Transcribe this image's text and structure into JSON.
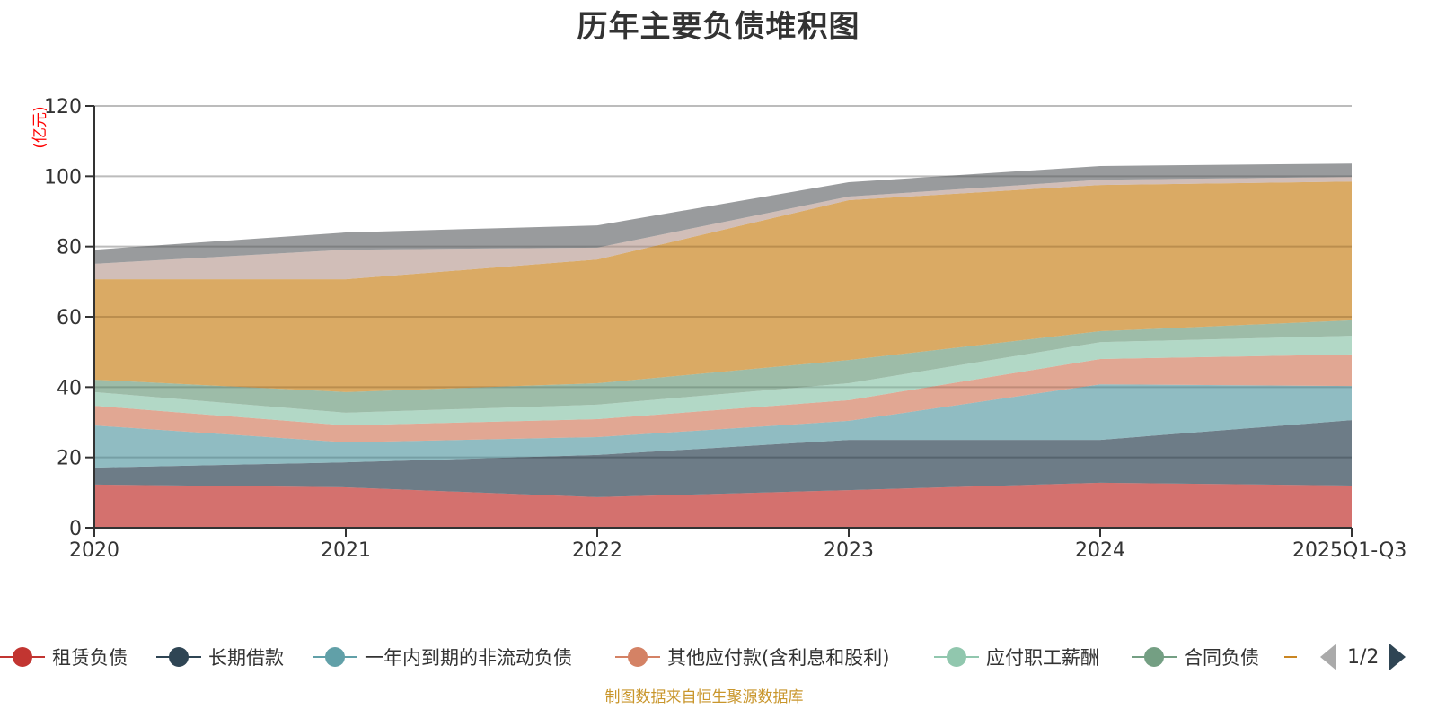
{
  "title": "历年主要负债堆积图",
  "footer": "制图数据来自恒生聚源数据库",
  "legend": {
    "items": [
      {
        "label": "租赁负债",
        "color": "#c23531"
      },
      {
        "label": "长期借款",
        "color": "#2f4554"
      },
      {
        "label": "一年内到期的非流动负债",
        "color": "#61a0a8"
      },
      {
        "label": "其他应付款(含利息和股利)",
        "color": "#d48265"
      },
      {
        "label": "应付职工薪酬",
        "color": "#91c7ae"
      },
      {
        "label": "合同负债",
        "color": "#749f83"
      },
      {
        "label": "",
        "color": "#ca8622"
      }
    ],
    "page": "1/2"
  },
  "chart_data": {
    "type": "area",
    "stacked": true,
    "title": "历年主要负债堆积图",
    "ylabel": "(亿元)",
    "xlabel": "",
    "ylim": [
      0,
      120
    ],
    "yticks": [
      0,
      20,
      40,
      60,
      80,
      100,
      120
    ],
    "grid": true,
    "legend_position": "bottom",
    "categories": [
      "2020",
      "2021",
      "2022",
      "2023",
      "2024",
      "2025Q1-Q3"
    ],
    "series": [
      {
        "name": "租赁负债",
        "color": "#c23531",
        "values": [
          12.3,
          11.5,
          8.7,
          10.7,
          12.8,
          12.0
        ]
      },
      {
        "name": "长期借款",
        "color": "#2f4554",
        "values": [
          4.8,
          7.1,
          12.0,
          14.3,
          12.2,
          18.6
        ]
      },
      {
        "name": "一年内到期的非流动负债",
        "color": "#61a0a8",
        "values": [
          12.0,
          5.7,
          5.1,
          5.4,
          15.8,
          9.7
        ]
      },
      {
        "name": "其他应付款(含利息和股利)",
        "color": "#d48265",
        "values": [
          5.6,
          4.8,
          5.1,
          5.9,
          7.2,
          9.0
        ]
      },
      {
        "name": "应付职工薪酬",
        "color": "#91c7ae",
        "values": [
          3.9,
          3.6,
          4.1,
          4.8,
          4.8,
          5.3
        ]
      },
      {
        "name": "合同负债",
        "color": "#749f83",
        "values": [
          3.5,
          5.9,
          6.1,
          6.6,
          3.1,
          4.4
        ]
      },
      {
        "name": "",
        "color": "#ca8622",
        "values": [
          28.6,
          32.1,
          35.2,
          45.5,
          41.6,
          39.5
        ]
      },
      {
        "name": "",
        "color": "#bda29a",
        "values": [
          4.4,
          8.4,
          3.4,
          1.0,
          1.5,
          1.3
        ]
      },
      {
        "name": "",
        "color": "#6e7074",
        "values": [
          4.0,
          4.9,
          6.3,
          4.1,
          3.9,
          3.8
        ]
      }
    ]
  }
}
